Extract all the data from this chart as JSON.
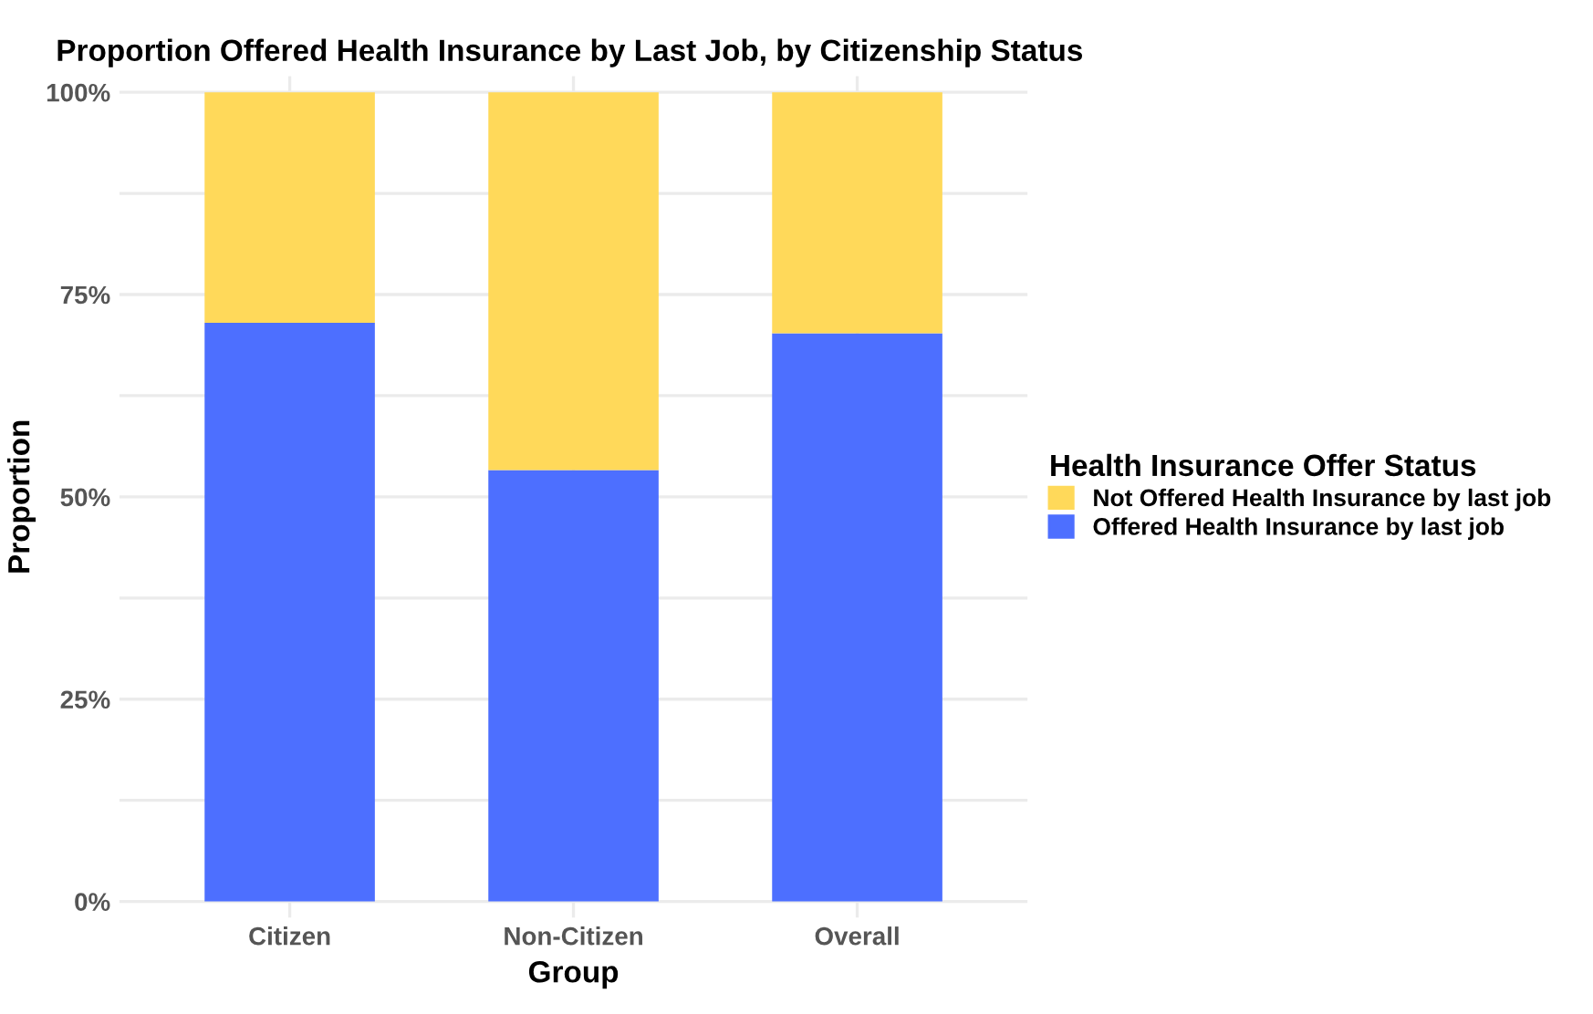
{
  "chart_data": {
    "type": "bar",
    "title": "Proportion Offered Health Insurance by Last Job, by Citizenship Status",
    "xlabel": "Group",
    "ylabel": "Proportion",
    "legend_title": "Health Insurance Offer Status",
    "categories": [
      "Citizen",
      "Non-Citizen",
      "Overall"
    ],
    "stacked": true,
    "series": [
      {
        "name": "Offered Health Insurance by last job",
        "color": "#4d6fff",
        "values": [
          71.5,
          53.3,
          70.2
        ]
      },
      {
        "name": "Not Offered Health Insurance by last job",
        "color": "#ffd95a",
        "values": [
          28.5,
          46.7,
          29.8
        ]
      }
    ],
    "ylim": [
      -2,
      102
    ],
    "yticks": [
      {
        "value": 0,
        "label": "0%"
      },
      {
        "value": 12.5,
        "label": null
      },
      {
        "value": 25,
        "label": "25%"
      },
      {
        "value": 37.5,
        "label": null
      },
      {
        "value": 50,
        "label": "50%"
      },
      {
        "value": 62.5,
        "label": null
      },
      {
        "value": 75,
        "label": "75%"
      },
      {
        "value": 87.5,
        "label": null
      },
      {
        "value": 100,
        "label": "100%"
      }
    ],
    "grid": true,
    "legend": "right"
  }
}
